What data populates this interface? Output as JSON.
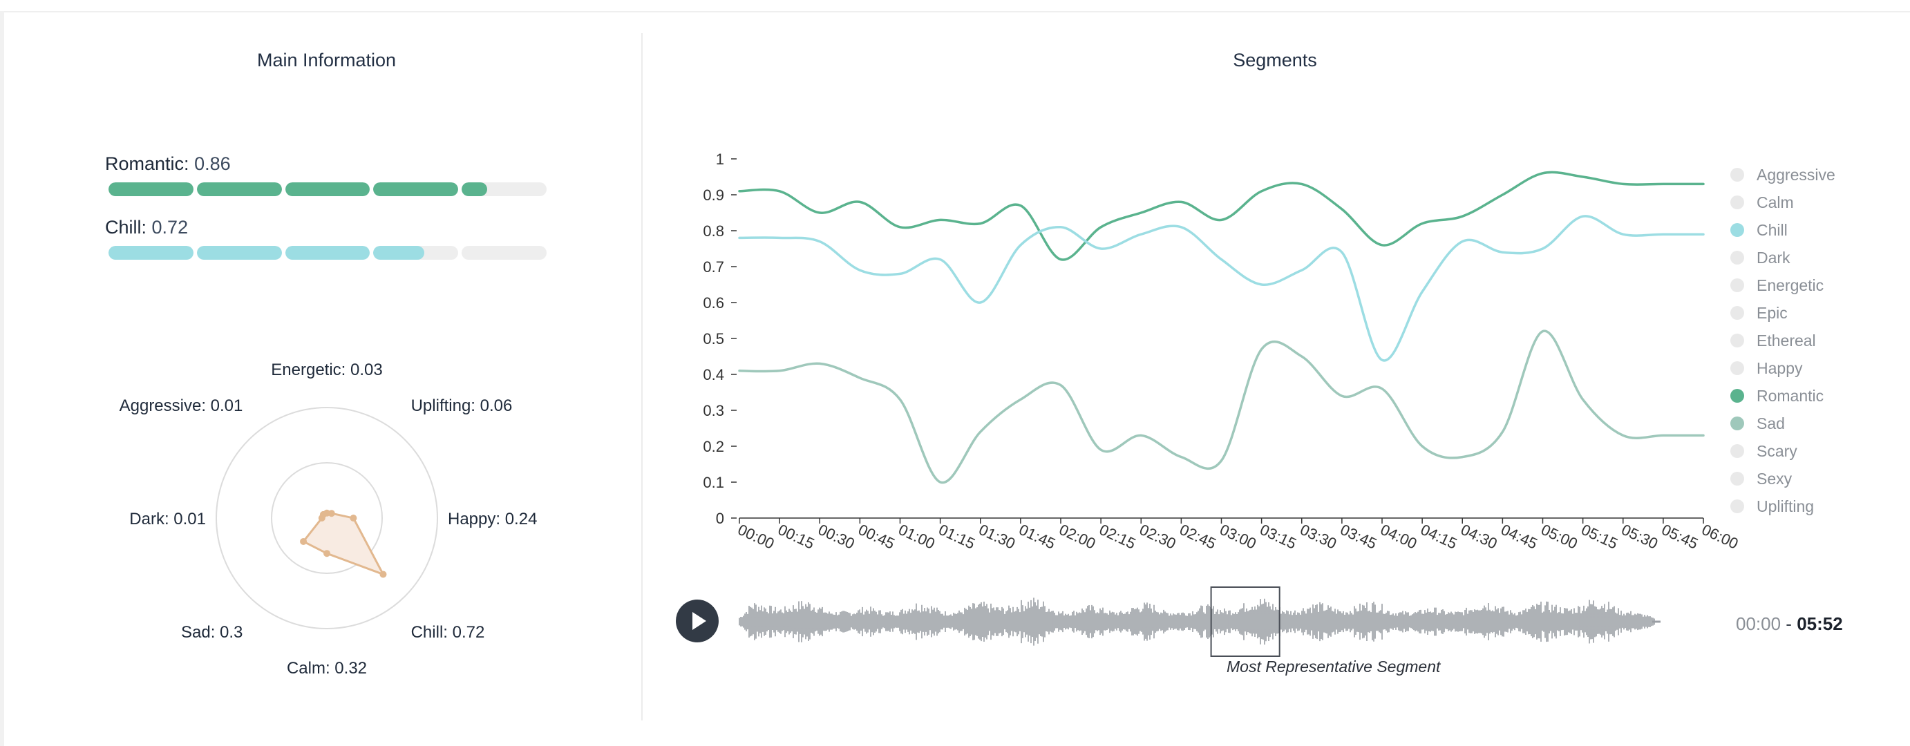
{
  "left_panel": {
    "title": "Main Information",
    "top_moods": [
      {
        "name": "Romantic:",
        "value": "0.86",
        "fraction": 0.86,
        "color": "#5ab38e",
        "segments": 5
      },
      {
        "name": "Chill:",
        "value": "0.72",
        "fraction": 0.72,
        "color": "#9cdde3",
        "segments": 5
      }
    ]
  },
  "radar": {
    "labels": [
      {
        "text": "Energetic: 0.03",
        "value": 0.03
      },
      {
        "text": "Uplifting: 0.06",
        "value": 0.06
      },
      {
        "text": "Happy: 0.24",
        "value": 0.24
      },
      {
        "text": "Chill: 0.72",
        "value": 0.72
      },
      {
        "text": "Calm: 0.32",
        "value": 0.32
      },
      {
        "text": "Sad: 0.3",
        "value": 0.3
      },
      {
        "text": "Dark: 0.01",
        "value": 0.01
      },
      {
        "text": "Aggressive: 0.01",
        "value": 0.01
      }
    ],
    "fill_color": "#f8ebe2",
    "stroke_color": "#e2b88f",
    "grid_color": "#dcdcdc"
  },
  "right_panel": {
    "title": "Segments"
  },
  "chart_data": {
    "type": "line",
    "title": "",
    "xlabel": "",
    "ylabel": "",
    "ylim": [
      0,
      1
    ],
    "yticks": [
      "0",
      "0.1",
      "0.2",
      "0.3",
      "0.4",
      "0.5",
      "0.6",
      "0.7",
      "0.8",
      "0.9",
      "1"
    ],
    "categories": [
      "00:00",
      "00:15",
      "00:30",
      "00:45",
      "01:00",
      "01:15",
      "01:30",
      "01:45",
      "02:00",
      "02:15",
      "02:30",
      "02:45",
      "03:00",
      "03:15",
      "03:30",
      "03:45",
      "04:00",
      "04:15",
      "04:30",
      "04:45",
      "05:00",
      "05:15",
      "05:30",
      "05:45",
      "06:00"
    ],
    "series": [
      {
        "name": "Romantic",
        "color": "#5ab38e",
        "values": [
          0.91,
          0.91,
          0.85,
          0.88,
          0.81,
          0.83,
          0.82,
          0.87,
          0.72,
          0.81,
          0.85,
          0.88,
          0.83,
          0.91,
          0.93,
          0.86,
          0.76,
          0.82,
          0.84,
          0.9,
          0.96,
          0.95,
          0.93,
          0.93,
          0.93
        ]
      },
      {
        "name": "Chill",
        "color": "#9cdde3",
        "values": [
          0.78,
          0.78,
          0.77,
          0.69,
          0.68,
          0.72,
          0.6,
          0.76,
          0.81,
          0.75,
          0.79,
          0.81,
          0.72,
          0.65,
          0.69,
          0.74,
          0.44,
          0.63,
          0.77,
          0.74,
          0.75,
          0.84,
          0.79,
          0.79,
          0.79
        ]
      },
      {
        "name": "Sad",
        "color": "#9fc8bb",
        "values": [
          0.41,
          0.41,
          0.43,
          0.39,
          0.33,
          0.1,
          0.24,
          0.33,
          0.37,
          0.19,
          0.23,
          0.17,
          0.16,
          0.47,
          0.45,
          0.34,
          0.36,
          0.2,
          0.17,
          0.24,
          0.52,
          0.33,
          0.23,
          0.23,
          0.23
        ]
      }
    ],
    "legend": {
      "placement": "right",
      "items": [
        {
          "label": "Aggressive",
          "color": "#e9e9e9"
        },
        {
          "label": "Calm",
          "color": "#e9e9e9"
        },
        {
          "label": "Chill",
          "color": "#9cdde3"
        },
        {
          "label": "Dark",
          "color": "#e9e9e9"
        },
        {
          "label": "Energetic",
          "color": "#e9e9e9"
        },
        {
          "label": "Epic",
          "color": "#e9e9e9"
        },
        {
          "label": "Ethereal",
          "color": "#e9e9e9"
        },
        {
          "label": "Happy",
          "color": "#e9e9e9"
        },
        {
          "label": "Romantic",
          "color": "#5ab38e"
        },
        {
          "label": "Sad",
          "color": "#9fc8bb"
        },
        {
          "label": "Scary",
          "color": "#e9e9e9"
        },
        {
          "label": "Sexy",
          "color": "#e9e9e9"
        },
        {
          "label": "Uplifting",
          "color": "#e9e9e9"
        }
      ]
    }
  },
  "player": {
    "play_icon": "play-icon",
    "waveform_color": "#9a9ea4",
    "representative_segment": {
      "start": "03:00",
      "end": "03:30",
      "caption": "Most Representative Segment"
    },
    "time_current": "00:00",
    "time_separator": " - ",
    "time_total": "05:52"
  }
}
